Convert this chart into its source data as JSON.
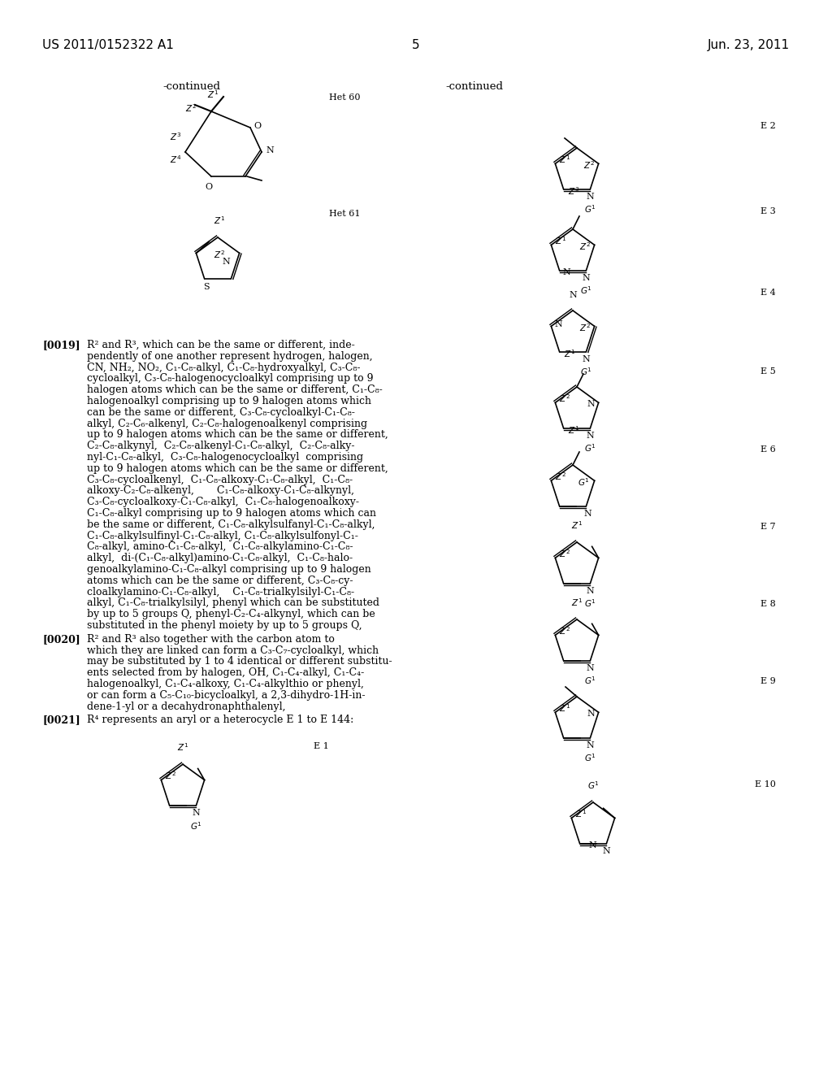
{
  "background_color": "#ffffff",
  "header_left": "US 2011/0152322 A1",
  "header_right": "Jun. 23, 2011",
  "page_number": "5"
}
